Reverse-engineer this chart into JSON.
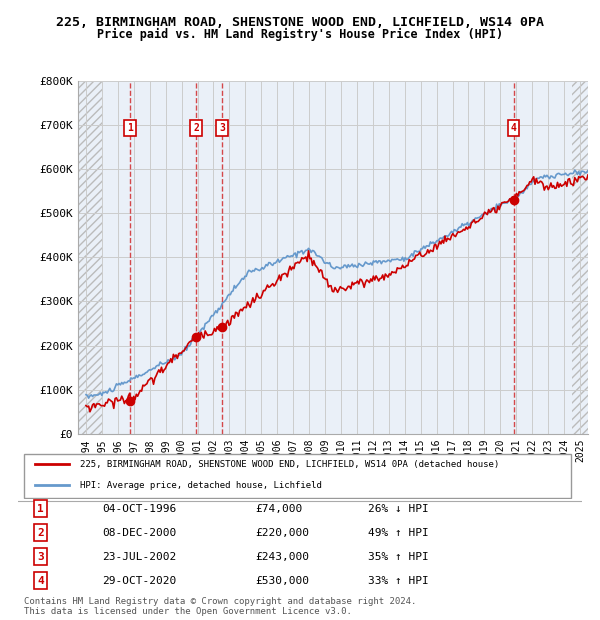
{
  "title_line1": "225, BIRMINGHAM ROAD, SHENSTONE WOOD END, LICHFIELD, WS14 0PA",
  "title_line2": "Price paid vs. HM Land Registry's House Price Index (HPI)",
  "sales": [
    {
      "label": "1",
      "date": "04-OCT-1996",
      "price": 74000,
      "pct": "26%",
      "dir": "↓"
    },
    {
      "label": "2",
      "date": "08-DEC-2000",
      "price": 220000,
      "pct": "49%",
      "dir": "↑"
    },
    {
      "label": "3",
      "date": "23-JUL-2002",
      "price": 243000,
      "pct": "35%",
      "dir": "↑"
    },
    {
      "label": "4",
      "date": "29-OCT-2020",
      "price": 530000,
      "pct": "33%",
      "dir": "↑"
    }
  ],
  "sale_years": [
    1996.75,
    2000.92,
    2002.55,
    2020.83
  ],
  "ylim": [
    0,
    800000
  ],
  "xlim_left": 1993.5,
  "xlim_right": 2025.5,
  "yticks": [
    0,
    100000,
    200000,
    300000,
    400000,
    500000,
    600000,
    700000,
    800000
  ],
  "ytick_labels": [
    "£0",
    "£100K",
    "£200K",
    "£300K",
    "£400K",
    "£500K",
    "£600K",
    "£700K",
    "£800K"
  ],
  "xticks": [
    1994,
    1995,
    1996,
    1997,
    1998,
    1999,
    2000,
    2001,
    2002,
    2003,
    2004,
    2005,
    2006,
    2007,
    2008,
    2009,
    2010,
    2011,
    2012,
    2013,
    2014,
    2015,
    2016,
    2017,
    2018,
    2019,
    2020,
    2021,
    2022,
    2023,
    2024,
    2025
  ],
  "red_line_color": "#cc0000",
  "blue_line_color": "#6699cc",
  "hatch_color": "#cccccc",
  "grid_color": "#cccccc",
  "background_color": "#eaf0f8",
  "legend_line1": "225, BIRMINGHAM ROAD, SHENSTONE WOOD END, LICHFIELD, WS14 0PA (detached house)",
  "legend_line2": "HPI: Average price, detached house, Lichfield",
  "footer_line1": "Contains HM Land Registry data © Crown copyright and database right 2024.",
  "footer_line2": "This data is licensed under the Open Government Licence v3.0."
}
